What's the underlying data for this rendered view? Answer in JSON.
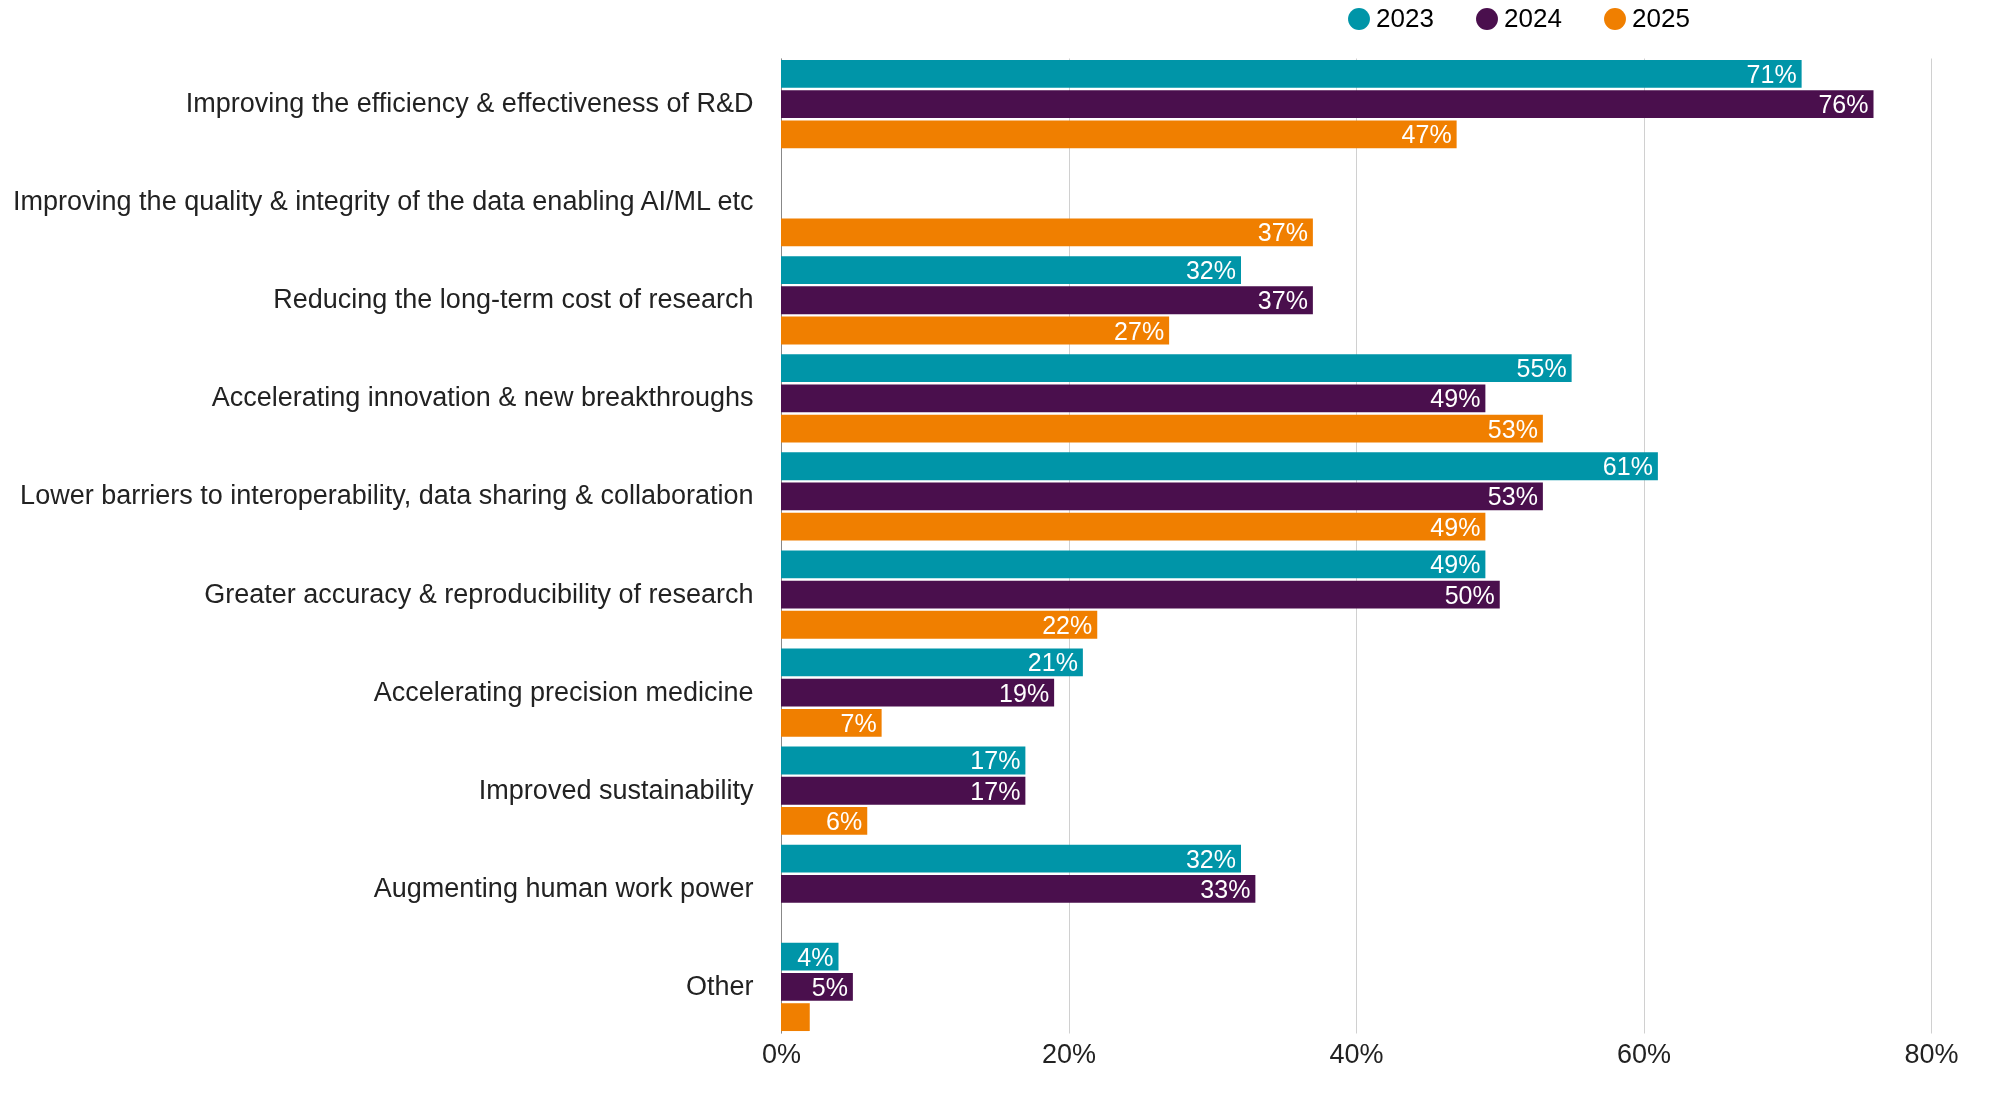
{
  "chart_data": {
    "type": "bar",
    "orientation": "horizontal",
    "categories": [
      "Improving the efficiency & effectiveness of R&D",
      "Improving the quality & integrity of the data enabling AI/ML etc",
      "Reducing the long-term cost of research",
      "Accelerating innovation & new breakthroughs",
      "Lower barriers to interoperability, data sharing & collaboration",
      "Greater accuracy & reproducibility of research",
      "Accelerating precision medicine",
      "Improved sustainability",
      "Augmenting human work power",
      "Other"
    ],
    "series": [
      {
        "name": "2023",
        "color": "#0095a8",
        "values": [
          71,
          null,
          32,
          55,
          61,
          49,
          21,
          17,
          32,
          4
        ],
        "value_labels": [
          "71%",
          null,
          "32%",
          "55%",
          "61%",
          "49%",
          "21%",
          "17%",
          "32%",
          "4%"
        ]
      },
      {
        "name": "2024",
        "color": "#4a0f4d",
        "values": [
          76,
          null,
          37,
          49,
          53,
          50,
          19,
          17,
          33,
          5
        ],
        "value_labels": [
          "76%",
          null,
          "37%",
          "49%",
          "53%",
          "50%",
          "19%",
          "17%",
          "33%",
          "5%"
        ]
      },
      {
        "name": "2025",
        "color": "#f07f00",
        "values": [
          47,
          37,
          27,
          53,
          49,
          22,
          7,
          6,
          null,
          2
        ],
        "value_labels": [
          "47%",
          "37%",
          "27%",
          "53%",
          "49%",
          "22%",
          "7%",
          "6%",
          null,
          null
        ]
      }
    ],
    "xlim": [
      0,
      80
    ],
    "xticks": [
      {
        "value": 0,
        "label": "0%"
      },
      {
        "value": 20,
        "label": "20%"
      },
      {
        "value": 40,
        "label": "40%"
      },
      {
        "value": 60,
        "label": "60%"
      },
      {
        "value": 80,
        "label": "80%"
      }
    ],
    "grid": "x",
    "legend": "top"
  }
}
